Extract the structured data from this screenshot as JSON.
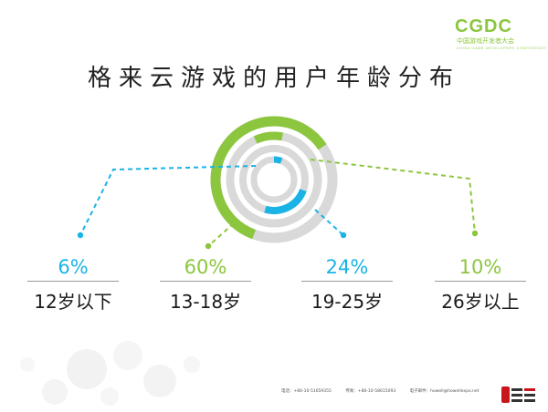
{
  "logo": {
    "wordmark": "CGDC",
    "subtitle": "中国游戏开发者大会",
    "subtitle_en": "CHINA GAME DEVELOPERS CONFERENCE"
  },
  "title": "格来云游戏的用户年龄分布",
  "colors": {
    "blue": "#1ab3e6",
    "green": "#8cc63f",
    "gray": "#d9d9d9"
  },
  "chart_data": {
    "type": "pie",
    "title": "格来云游戏的用户年龄分布",
    "categories": [
      "12岁以下",
      "13-18岁",
      "19-25岁",
      "26岁以上"
    ],
    "values": [
      6,
      60,
      24,
      10
    ],
    "labels": [
      "6%",
      "60%",
      "24%",
      "10%"
    ],
    "style": "concentric radial rings"
  },
  "footer": {
    "phone": "电话：+86-10-51659355",
    "fax": "传真：+86-10-58615093",
    "email": "电子邮件：howell@howellexpo.net"
  }
}
